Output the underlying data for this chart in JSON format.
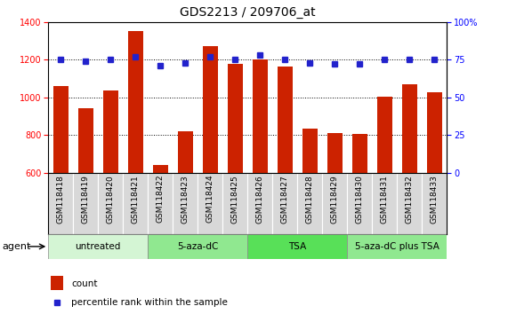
{
  "title": "GDS2213 / 209706_at",
  "samples": [
    "GSM118418",
    "GSM118419",
    "GSM118420",
    "GSM118421",
    "GSM118422",
    "GSM118423",
    "GSM118424",
    "GSM118425",
    "GSM118426",
    "GSM118427",
    "GSM118428",
    "GSM118429",
    "GSM118430",
    "GSM118431",
    "GSM118432",
    "GSM118433"
  ],
  "counts": [
    1060,
    940,
    1035,
    1350,
    640,
    820,
    1270,
    1180,
    1200,
    1165,
    835,
    810,
    805,
    1005,
    1070,
    1025
  ],
  "percentiles": [
    75,
    74,
    75,
    77,
    71,
    73,
    77,
    75,
    78,
    75,
    73,
    72,
    72,
    75,
    75,
    75
  ],
  "groups": [
    {
      "label": "untreated",
      "start": 0,
      "end": 4,
      "color": "#d4f5d4"
    },
    {
      "label": "5-aza-dC",
      "start": 4,
      "end": 8,
      "color": "#90e890"
    },
    {
      "label": "TSA",
      "start": 8,
      "end": 12,
      "color": "#58e058"
    },
    {
      "label": "5-aza-dC plus TSA",
      "start": 12,
      "end": 16,
      "color": "#90e890"
    }
  ],
  "bar_color": "#cc2200",
  "dot_color": "#2222cc",
  "left_ylim": [
    600,
    1400
  ],
  "left_yticks": [
    600,
    800,
    1000,
    1200,
    1400
  ],
  "right_ylim": [
    0,
    100
  ],
  "right_yticks": [
    0,
    25,
    50,
    75,
    100
  ],
  "background_color": "#ffffff",
  "plot_bg_color": "#ffffff",
  "agent_label": "agent",
  "legend_count_label": "count",
  "legend_pct_label": "percentile rank within the sample",
  "title_fontsize": 10,
  "tick_fontsize": 7,
  "label_fontsize": 6.5,
  "group_fontsize": 7.5
}
